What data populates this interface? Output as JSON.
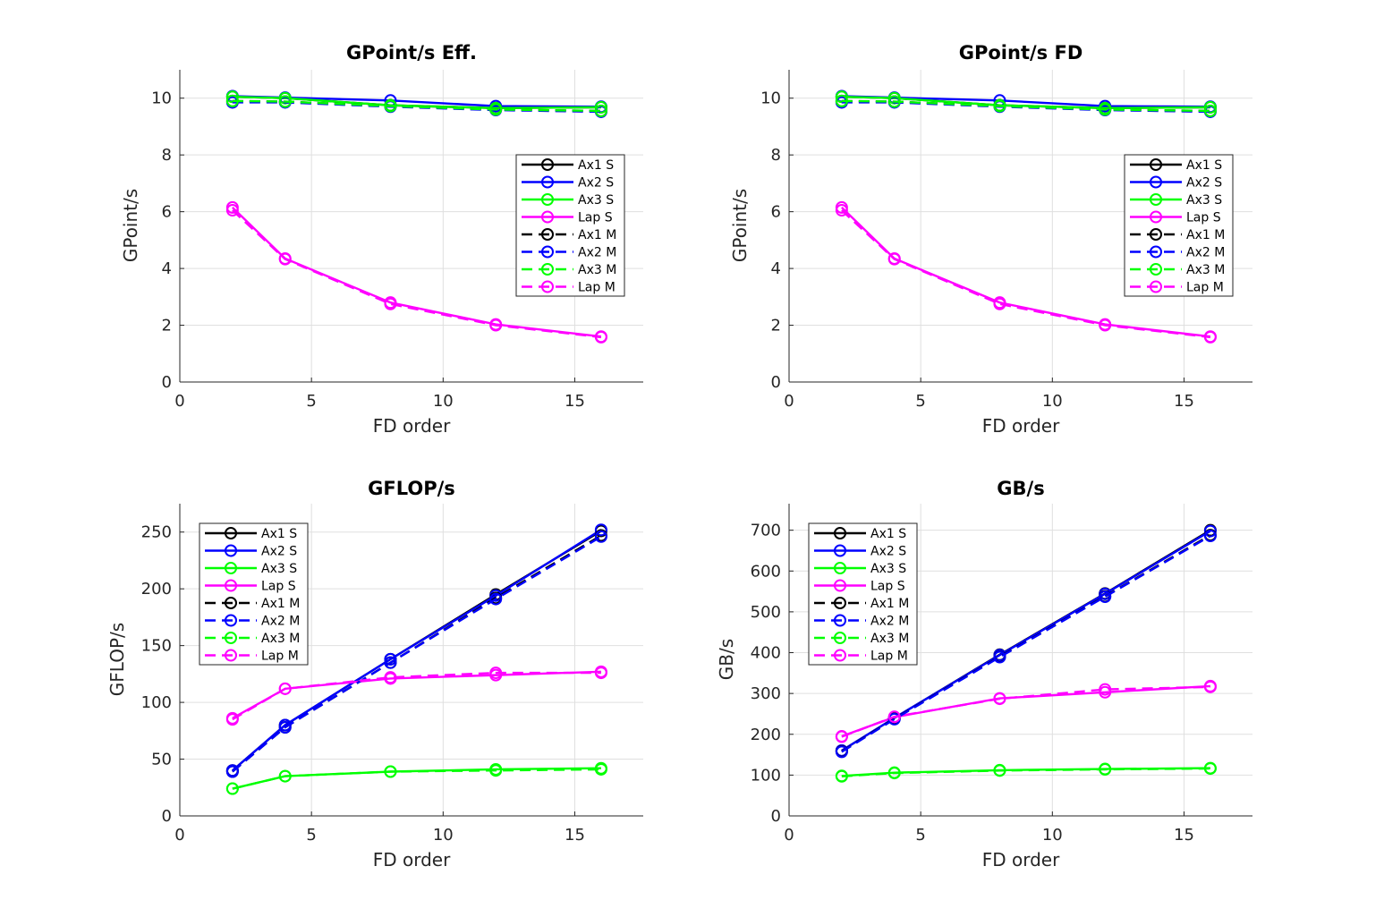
{
  "series_styles": [
    {
      "name": "Ax1 S",
      "color": "#000000",
      "dash": "solid"
    },
    {
      "name": "Ax2 S",
      "color": "#0000ff",
      "dash": "solid"
    },
    {
      "name": "Ax3 S",
      "color": "#00ff00",
      "dash": "solid"
    },
    {
      "name": "Lap S",
      "color": "#ff00ff",
      "dash": "solid"
    },
    {
      "name": "Ax1 M",
      "color": "#000000",
      "dash": "dashed"
    },
    {
      "name": "Ax2 M",
      "color": "#0000ff",
      "dash": "dashed"
    },
    {
      "name": "Ax3 M",
      "color": "#00ff00",
      "dash": "dashed"
    },
    {
      "name": "Lap M",
      "color": "#ff00ff",
      "dash": "dashed"
    }
  ],
  "chart_data": [
    {
      "type": "line",
      "title": "GPoint/s Eff.",
      "xlabel": "FD order",
      "ylabel": "GPoint/s",
      "xlim": [
        0,
        17.6
      ],
      "ylim": [
        0,
        11
      ],
      "xticks": [
        0,
        5,
        10,
        15
      ],
      "yticks": [
        0,
        2,
        4,
        6,
        8,
        10
      ],
      "grid": true,
      "legend": "right",
      "x": [
        2,
        4,
        8,
        12,
        16
      ],
      "series": [
        {
          "name": "Ax1 S",
          "values": [
            10.05,
            10.0,
            9.75,
            9.65,
            9.68
          ]
        },
        {
          "name": "Ax2 S",
          "values": [
            10.07,
            10.02,
            9.92,
            9.72,
            9.7
          ]
        },
        {
          "name": "Ax3 S",
          "values": [
            10.05,
            10.0,
            9.75,
            9.65,
            9.68
          ]
        },
        {
          "name": "Lap S",
          "values": [
            6.15,
            4.35,
            2.8,
            2.03,
            1.6
          ]
        },
        {
          "name": "Ax1 M",
          "values": [
            9.9,
            9.88,
            9.72,
            9.6,
            9.55
          ]
        },
        {
          "name": "Ax2 M",
          "values": [
            9.85,
            9.85,
            9.7,
            9.58,
            9.52
          ]
        },
        {
          "name": "Ax3 M",
          "values": [
            9.9,
            9.88,
            9.72,
            9.6,
            9.55
          ]
        },
        {
          "name": "Lap M",
          "values": [
            6.05,
            4.33,
            2.75,
            2.0,
            1.58
          ]
        }
      ]
    },
    {
      "type": "line",
      "title": "GPoint/s FD",
      "xlabel": "FD order",
      "ylabel": "GPoint/s",
      "xlim": [
        0,
        17.6
      ],
      "ylim": [
        0,
        11
      ],
      "xticks": [
        0,
        5,
        10,
        15
      ],
      "yticks": [
        0,
        2,
        4,
        6,
        8,
        10
      ],
      "grid": true,
      "legend": "right",
      "x": [
        2,
        4,
        8,
        12,
        16
      ],
      "series": [
        {
          "name": "Ax1 S",
          "values": [
            10.05,
            10.0,
            9.75,
            9.65,
            9.68
          ]
        },
        {
          "name": "Ax2 S",
          "values": [
            10.07,
            10.02,
            9.92,
            9.72,
            9.7
          ]
        },
        {
          "name": "Ax3 S",
          "values": [
            10.05,
            10.0,
            9.75,
            9.65,
            9.68
          ]
        },
        {
          "name": "Lap S",
          "values": [
            6.15,
            4.35,
            2.8,
            2.03,
            1.6
          ]
        },
        {
          "name": "Ax1 M",
          "values": [
            9.9,
            9.88,
            9.72,
            9.6,
            9.55
          ]
        },
        {
          "name": "Ax2 M",
          "values": [
            9.85,
            9.85,
            9.7,
            9.58,
            9.52
          ]
        },
        {
          "name": "Ax3 M",
          "values": [
            9.9,
            9.88,
            9.72,
            9.6,
            9.55
          ]
        },
        {
          "name": "Lap M",
          "values": [
            6.05,
            4.33,
            2.75,
            2.0,
            1.58
          ]
        }
      ]
    },
    {
      "type": "line",
      "title": "GFLOP/s",
      "xlabel": "FD order",
      "ylabel": "GFLOP/s",
      "xlim": [
        0,
        17.6
      ],
      "ylim": [
        0,
        275
      ],
      "xticks": [
        0,
        5,
        10,
        15
      ],
      "yticks": [
        0,
        50,
        100,
        150,
        200,
        250
      ],
      "grid": true,
      "legend": "top-left",
      "x": [
        2,
        4,
        8,
        12,
        16
      ],
      "series": [
        {
          "name": "Ax1 S",
          "values": [
            40,
            80,
            138,
            195,
            251
          ]
        },
        {
          "name": "Ax2 S",
          "values": [
            40,
            80,
            138,
            194,
            252
          ]
        },
        {
          "name": "Ax3 S",
          "values": [
            24,
            35,
            39,
            41,
            42
          ]
        },
        {
          "name": "Lap S",
          "values": [
            86,
            112,
            121,
            124,
            127
          ]
        },
        {
          "name": "Ax1 M",
          "values": [
            39,
            78,
            135,
            192,
            247
          ]
        },
        {
          "name": "Ax2 M",
          "values": [
            39,
            78,
            135,
            191,
            246
          ]
        },
        {
          "name": "Ax3 M",
          "values": [
            24,
            35,
            39,
            40,
            41
          ]
        },
        {
          "name": "Lap M",
          "values": [
            85,
            112,
            122,
            126,
            126
          ]
        }
      ]
    },
    {
      "type": "line",
      "title": "GB/s",
      "xlabel": "FD order",
      "ylabel": "GB/s",
      "xlim": [
        0,
        17.6
      ],
      "ylim": [
        0,
        765
      ],
      "xticks": [
        0,
        5,
        10,
        15
      ],
      "yticks": [
        0,
        100,
        200,
        300,
        400,
        500,
        600,
        700
      ],
      "grid": true,
      "legend": "top-left",
      "x": [
        2,
        4,
        8,
        12,
        16
      ],
      "series": [
        {
          "name": "Ax1 S",
          "values": [
            160,
            240,
            395,
            545,
            700
          ]
        },
        {
          "name": "Ax2 S",
          "values": [
            160,
            240,
            394,
            544,
            698
          ]
        },
        {
          "name": "Ax3 S",
          "values": [
            98,
            106,
            112,
            115,
            117
          ]
        },
        {
          "name": "Lap S",
          "values": [
            195,
            242,
            288,
            303,
            318
          ]
        },
        {
          "name": "Ax1 M",
          "values": [
            158,
            238,
            390,
            538,
            688
          ]
        },
        {
          "name": "Ax2 M",
          "values": [
            157,
            237,
            389,
            537,
            686
          ]
        },
        {
          "name": "Ax3 M",
          "values": [
            97,
            105,
            111,
            114,
            116
          ]
        },
        {
          "name": "Lap M",
          "values": [
            194,
            243,
            287,
            310,
            316
          ]
        }
      ]
    }
  ]
}
